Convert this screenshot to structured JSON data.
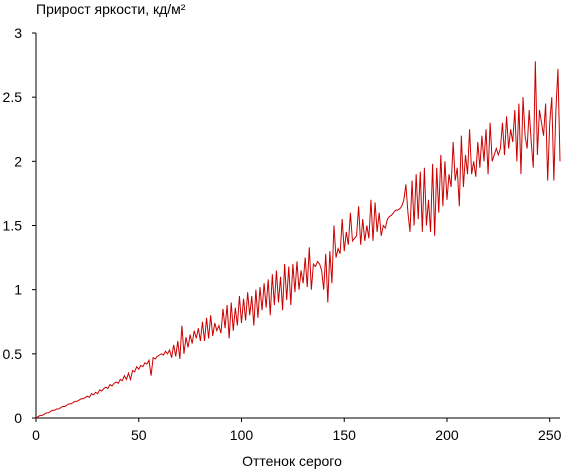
{
  "chart_data": {
    "type": "line",
    "title": "Прирост яркости, кд/м²",
    "x_label": "Оттенок серого",
    "xlim": [
      0,
      255
    ],
    "ylim": [
      0,
      3
    ],
    "xticks": [
      0,
      50,
      100,
      150,
      200,
      250
    ],
    "yticks": [
      0,
      0.5,
      1,
      1.5,
      2,
      2.5,
      3
    ],
    "grid": false,
    "x": [
      0,
      1,
      2,
      3,
      4,
      5,
      6,
      7,
      8,
      9,
      10,
      11,
      12,
      13,
      14,
      15,
      16,
      17,
      18,
      19,
      20,
      21,
      22,
      23,
      24,
      25,
      26,
      27,
      28,
      29,
      30,
      31,
      32,
      33,
      34,
      35,
      36,
      37,
      38,
      39,
      40,
      41,
      42,
      43,
      44,
      45,
      46,
      47,
      48,
      49,
      50,
      51,
      52,
      53,
      54,
      55,
      56,
      57,
      58,
      59,
      60,
      61,
      62,
      63,
      64,
      65,
      66,
      67,
      68,
      69,
      70,
      71,
      72,
      73,
      74,
      75,
      76,
      77,
      78,
      79,
      80,
      81,
      82,
      83,
      84,
      85,
      86,
      87,
      88,
      89,
      90,
      91,
      92,
      93,
      94,
      95,
      96,
      97,
      98,
      99,
      100,
      101,
      102,
      103,
      104,
      105,
      106,
      107,
      108,
      109,
      110,
      111,
      112,
      113,
      114,
      115,
      116,
      117,
      118,
      119,
      120,
      121,
      122,
      123,
      124,
      125,
      126,
      127,
      128,
      129,
      130,
      131,
      132,
      133,
      134,
      135,
      136,
      137,
      138,
      139,
      140,
      141,
      142,
      143,
      144,
      145,
      146,
      147,
      148,
      149,
      150,
      151,
      152,
      153,
      154,
      155,
      156,
      157,
      158,
      159,
      160,
      161,
      162,
      163,
      164,
      165,
      166,
      167,
      168,
      169,
      170,
      171,
      172,
      173,
      174,
      175,
      176,
      177,
      178,
      179,
      180,
      181,
      182,
      183,
      184,
      185,
      186,
      187,
      188,
      189,
      190,
      191,
      192,
      193,
      194,
      195,
      196,
      197,
      198,
      199,
      200,
      201,
      202,
      203,
      204,
      205,
      206,
      207,
      208,
      209,
      210,
      211,
      212,
      213,
      214,
      215,
      216,
      217,
      218,
      219,
      220,
      221,
      222,
      223,
      224,
      225,
      226,
      227,
      228,
      229,
      230,
      231,
      232,
      233,
      234,
      235,
      236,
      237,
      238,
      239,
      240,
      241,
      242,
      243,
      244,
      245,
      246,
      247,
      248,
      249,
      250,
      251,
      252,
      253,
      254,
      255
    ],
    "series": [
      {
        "color": "#cc0000",
        "values": [
          0,
          0.01,
          0.02,
          0.02,
          0.03,
          0.04,
          0.04,
          0.05,
          0.06,
          0.06,
          0.07,
          0.07,
          0.08,
          0.09,
          0.09,
          0.1,
          0.11,
          0.11,
          0.12,
          0.13,
          0.13,
          0.14,
          0.15,
          0.15,
          0.16,
          0.17,
          0.16,
          0.19,
          0.18,
          0.2,
          0.19,
          0.22,
          0.21,
          0.23,
          0.24,
          0.23,
          0.26,
          0.25,
          0.27,
          0.28,
          0.27,
          0.3,
          0.29,
          0.33,
          0.3,
          0.35,
          0.3,
          0.37,
          0.36,
          0.4,
          0.38,
          0.41,
          0.4,
          0.43,
          0.42,
          0.45,
          0.33,
          0.47,
          0.46,
          0.48,
          0.49,
          0.5,
          0.49,
          0.52,
          0.5,
          0.53,
          0.47,
          0.57,
          0.48,
          0.6,
          0.46,
          0.72,
          0.5,
          0.63,
          0.55,
          0.65,
          0.58,
          0.68,
          0.62,
          0.7,
          0.6,
          0.75,
          0.6,
          0.78,
          0.62,
          0.8,
          0.64,
          0.74,
          0.68,
          0.72,
          0.66,
          0.85,
          0.7,
          0.88,
          0.62,
          0.9,
          0.68,
          0.86,
          0.72,
          0.95,
          0.74,
          0.93,
          0.76,
          0.98,
          0.8,
          0.95,
          0.72,
          1.0,
          0.78,
          1.02,
          0.84,
          1.05,
          0.86,
          1.08,
          0.8,
          1.12,
          0.88,
          1.15,
          0.9,
          1.1,
          0.84,
          1.2,
          0.92,
          1.18,
          0.88,
          1.2,
          0.98,
          1.22,
          1.0,
          1.15,
          1.05,
          1.25,
          1.02,
          1.33,
          1.0,
          1.2,
          1.18,
          1.22,
          1.2,
          1.15,
          1.0,
          1.28,
          0.9,
          1.3,
          1.05,
          1.5,
          1.25,
          1.32,
          1.28,
          1.55,
          1.3,
          1.45,
          1.35,
          1.6,
          1.38,
          1.4,
          1.42,
          1.65,
          1.35,
          1.55,
          1.38,
          1.5,
          1.4,
          1.7,
          1.38,
          1.68,
          1.45,
          1.6,
          1.42,
          1.5,
          1.48,
          1.55,
          1.57,
          1.58,
          1.6,
          1.62,
          1.62,
          1.63,
          1.65,
          1.7,
          1.82,
          1.6,
          1.45,
          1.85,
          1.5,
          1.9,
          1.55,
          1.92,
          1.45,
          1.95,
          1.5,
          1.7,
          1.45,
          1.98,
          1.42,
          1.95,
          1.6,
          2.05,
          1.65,
          2.0,
          1.7,
          1.9,
          1.8,
          2.15,
          1.85,
          1.95,
          1.65,
          2.2,
          1.8,
          2.05,
          1.9,
          2.25,
          1.9,
          2.0,
          1.88,
          2.15,
          1.95,
          2.2,
          2.0,
          2.25,
          1.9,
          2.3,
          2.0,
          2.05,
          2.1,
          2.05,
          2.1,
          2.3,
          2.05,
          2.35,
          2.1,
          2.25,
          2.15,
          2.4,
          2.0,
          2.45,
          1.9,
          2.5,
          2.2,
          2.1,
          2.4,
          2.15,
          1.95,
          2.78,
          2.05,
          2.4,
          2.3,
          2.2,
          2.45,
          1.85,
          2.3,
          2.5,
          1.85,
          2.4,
          2.72,
          2.0
        ]
      }
    ]
  }
}
